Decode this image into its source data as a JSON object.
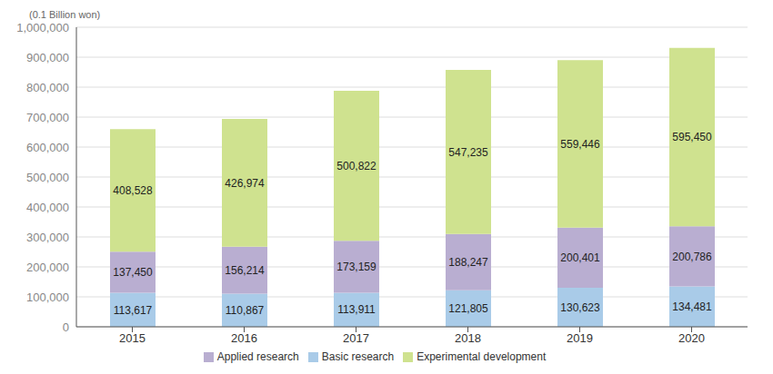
{
  "chart_data": {
    "type": "bar",
    "y_label": "(0.1 Billion won)",
    "categories": [
      "2015",
      "2016",
      "2017",
      "2018",
      "2019",
      "2020"
    ],
    "series": [
      {
        "name": "Basic research",
        "color": "#a9cbe8",
        "values": [
          113617,
          110867,
          113911,
          121805,
          130623,
          134481
        ],
        "value_labels": [
          "113,617",
          "110,867",
          "113,911",
          "121,805",
          "130,623",
          "134,481"
        ]
      },
      {
        "name": "Applied research",
        "color": "#b9aed1",
        "values": [
          137450,
          156214,
          173159,
          188247,
          200401,
          200786
        ],
        "value_labels": [
          "137,450",
          "156,214",
          "173,159",
          "188,247",
          "200,401",
          "200,786"
        ]
      },
      {
        "name": "Experimental development",
        "color": "#cfe28f",
        "values": [
          408528,
          426974,
          500822,
          547235,
          559446,
          595450
        ],
        "value_labels": [
          "408,528",
          "426,974",
          "500,822",
          "547,235",
          "559,446",
          "595,450"
        ]
      }
    ],
    "ylim": [
      0,
      1000000
    ],
    "yticks": [
      0,
      {
        "value": 100000,
        "label": "100,000"
      },
      {
        "value": 200000,
        "label": "200,000"
      },
      {
        "value": 300000,
        "label": "300,000"
      },
      {
        "value": 400000,
        "label": "400,000"
      },
      {
        "value": 500000,
        "label": "500,000"
      },
      {
        "value": 600000,
        "label": "600,000"
      },
      {
        "value": 700000,
        "label": "700,000"
      },
      {
        "value": 800000,
        "label": "800,000"
      },
      {
        "value": 900000,
        "label": "900,000"
      },
      {
        "value": 1000000,
        "label": "1,000,000"
      }
    ],
    "grid": true,
    "stacked": true,
    "data_labels": true,
    "legend": "bottom"
  }
}
